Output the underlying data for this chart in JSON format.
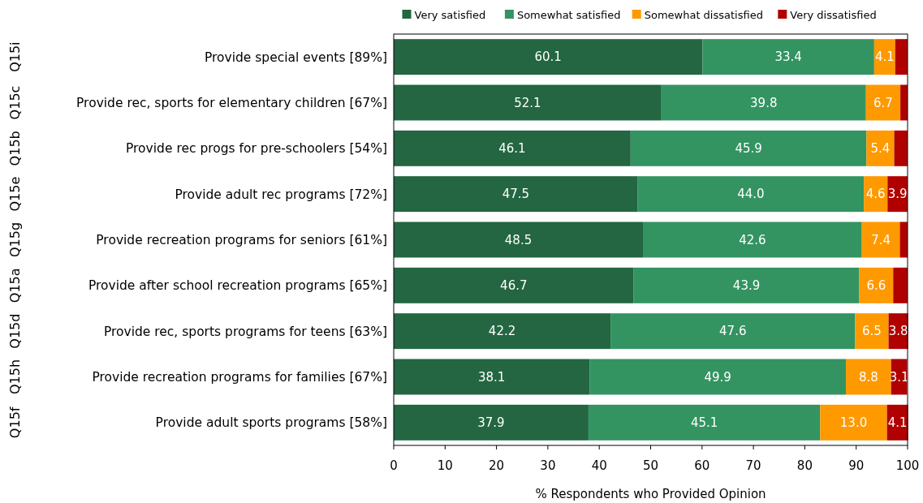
{
  "chart_data": {
    "type": "bar",
    "orientation": "horizontal",
    "stacked": true,
    "xlabel": "% Respondents who Provided Opinion",
    "categories": [
      "Provide special events [89%]",
      "Provide rec, sports for elementary children [67%]",
      "Provide rec progs for pre-schoolers [54%]",
      "Provide adult rec programs [72%]",
      "Provide recreation programs for seniors [61%]",
      "Provide after school recreation programs [65%]",
      "Provide rec, sports programs for teens [63%]",
      "Provide recreation programs for families [67%]",
      "Provide adult sports programs [58%]"
    ],
    "series": [
      {
        "name": "Very satisfied",
        "color": "#236641",
        "values": [
          60.1,
          52.1,
          46.1,
          47.5,
          48.5,
          46.7,
          42.2,
          38.1,
          37.9
        ],
        "value_labels": [
          "60.1",
          "52.1",
          "46.1",
          "47.5",
          "48.5",
          "46.7",
          "42.2",
          "38.1",
          "37.9"
        ]
      },
      {
        "name": "Somewhat satisfied",
        "color": "#339461",
        "values": [
          33.4,
          39.8,
          45.9,
          44.0,
          42.6,
          43.9,
          47.6,
          49.9,
          45.1
        ],
        "value_labels": [
          "33.4",
          "39.8",
          "45.9",
          "44.0",
          "42.6",
          "43.9",
          "47.6",
          "49.9",
          "45.1"
        ]
      },
      {
        "name": "Somewhat dissatisfied",
        "color": "#ff9900",
        "values": [
          4.1,
          6.7,
          5.4,
          4.6,
          7.4,
          6.6,
          6.5,
          8.8,
          13.0
        ],
        "value_labels": [
          "4.1",
          "6.7",
          "5.4",
          "4.6",
          "7.4",
          "6.6",
          "6.5",
          "8.8",
          "13.0"
        ]
      },
      {
        "name": "Very dissatisfied",
        "color": "#b00000",
        "values": [
          2.4,
          1.4,
          2.6,
          3.9,
          1.5,
          2.8,
          3.8,
          3.1,
          4.1
        ],
        "value_labels": [
          null,
          null,
          null,
          "3.9",
          null,
          null,
          "3.8",
          "3.1",
          "4.1"
        ]
      }
    ],
    "xlim": [
      0,
      100
    ],
    "xticks": [
      0,
      10,
      20,
      30,
      40,
      50,
      60,
      70,
      80,
      90,
      100
    ],
    "legend": "top",
    "grid": false,
    "annotations": [
      "Q15i",
      "Q15c",
      "Q15b",
      "Q15e",
      "Q15g",
      "Q15a",
      "Q15d",
      "Q15h",
      "Q15f"
    ]
  }
}
